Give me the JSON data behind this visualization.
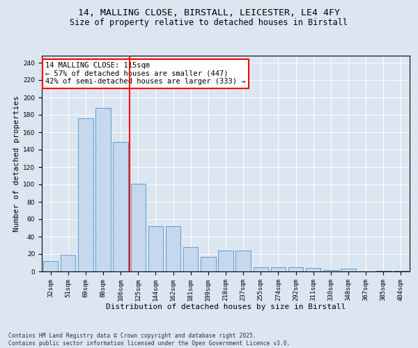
{
  "title_line1": "14, MALLING CLOSE, BIRSTALL, LEICESTER, LE4 4FY",
  "title_line2": "Size of property relative to detached houses in Birstall",
  "xlabel": "Distribution of detached houses by size in Birstall",
  "ylabel": "Number of detached properties",
  "categories": [
    "32sqm",
    "51sqm",
    "69sqm",
    "88sqm",
    "106sqm",
    "125sqm",
    "144sqm",
    "162sqm",
    "181sqm",
    "199sqm",
    "218sqm",
    "237sqm",
    "255sqm",
    "274sqm",
    "292sqm",
    "311sqm",
    "330sqm",
    "348sqm",
    "367sqm",
    "385sqm",
    "404sqm"
  ],
  "values": [
    12,
    19,
    176,
    188,
    149,
    101,
    52,
    52,
    28,
    17,
    24,
    24,
    5,
    5,
    5,
    4,
    2,
    3,
    0,
    1,
    1
  ],
  "bar_color": "#c5d8ed",
  "bar_edge_color": "#5b9bd5",
  "vline_x": 4.5,
  "vline_color": "red",
  "annotation_text": "14 MALLING CLOSE: 115sqm\n← 57% of detached houses are smaller (447)\n42% of semi-detached houses are larger (333) →",
  "annotation_box_color": "white",
  "annotation_box_edge_color": "red",
  "ylim": [
    0,
    248
  ],
  "yticks": [
    0,
    20,
    40,
    60,
    80,
    100,
    120,
    140,
    160,
    180,
    200,
    220,
    240
  ],
  "background_color": "#dce6f1",
  "plot_bg_color": "#dce6f1",
  "footer_text": "Contains HM Land Registry data © Crown copyright and database right 2025.\nContains public sector information licensed under the Open Government Licence v3.0.",
  "title_fontsize": 9.5,
  "subtitle_fontsize": 8.5,
  "axis_label_fontsize": 8,
  "tick_fontsize": 6.5,
  "annotation_fontsize": 7.5,
  "footer_fontsize": 5.8
}
